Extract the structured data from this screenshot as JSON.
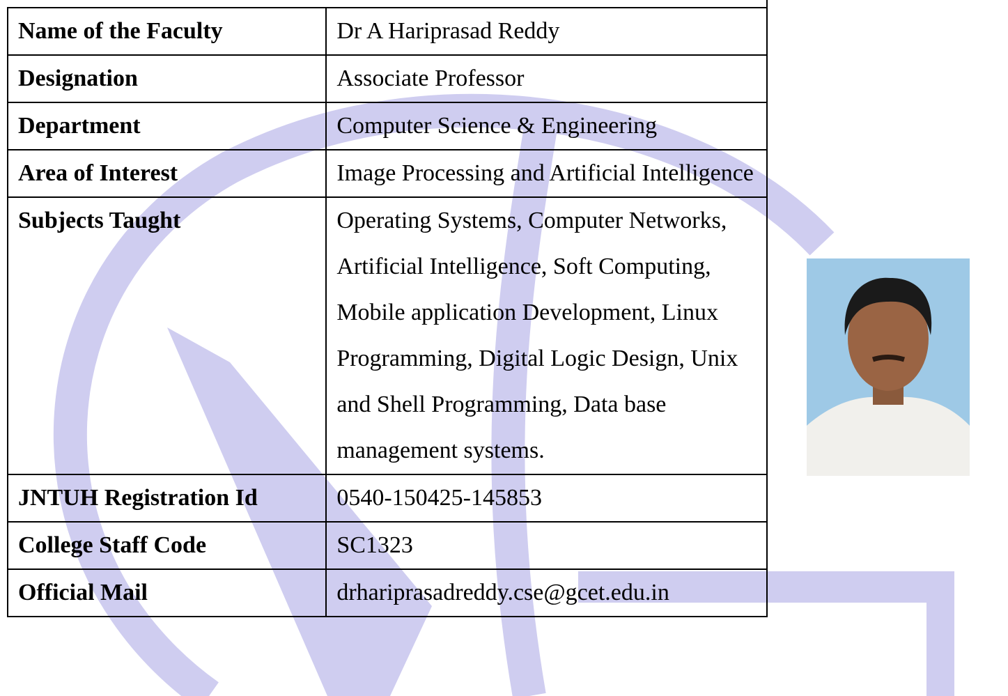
{
  "table": {
    "rows": [
      [
        "Name of the Faculty",
        "Dr A Hariprasad Reddy"
      ],
      [
        "Designation",
        "Associate Professor"
      ],
      [
        "Department",
        "Computer Science & Engineering"
      ],
      [
        "Area of Interest",
        "Image Processing and Artificial Intelligence"
      ],
      [
        "Subjects Taught",
        "Operating Systems, Computer Networks, Artificial Intelligence, Soft Computing, Mobile application Development, Linux Programming, Digital Logic Design, Unix and Shell Programming, Data base management systems."
      ],
      [
        "JNTUH Registration Id",
        "0540-150425-145853"
      ],
      [
        "College Staff Code",
        "SC1323"
      ],
      [
        "Official Mail",
        "drhariprasadreddy.cse@gcet.edu.in"
      ]
    ]
  }
}
